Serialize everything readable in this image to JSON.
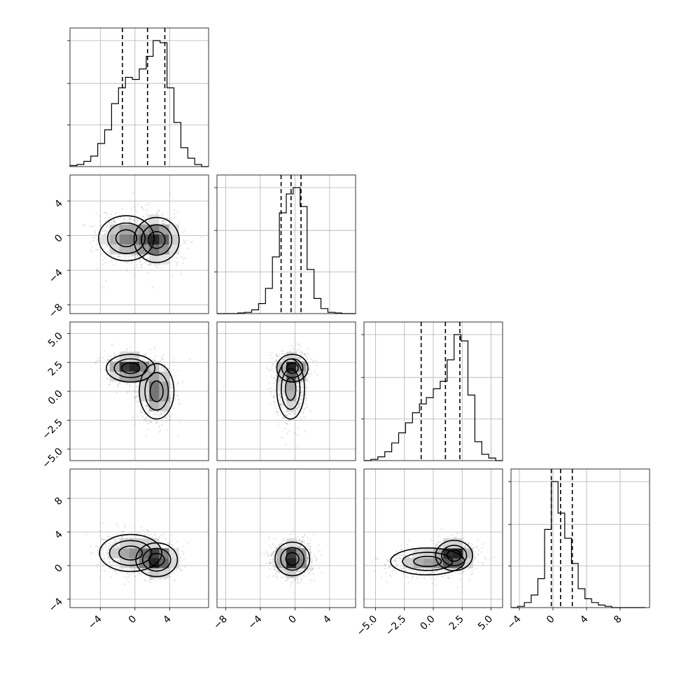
{
  "chart_data": {
    "type": "corner",
    "grid": true,
    "marginal_histograms": [
      {
        "name": "param_0",
        "xlim": [
          -7.5,
          8.5
        ],
        "bin_edges": [
          -7.5,
          -6.7,
          -5.9,
          -5.1,
          -4.3,
          -3.5,
          -2.7,
          -1.9,
          -1.1,
          -0.3,
          0.5,
          1.3,
          2.1,
          2.9,
          3.7,
          4.5,
          5.3,
          6.1,
          6.9,
          7.7,
          8.5
        ],
        "counts": [
          0.01,
          0.02,
          0.05,
          0.1,
          0.22,
          0.35,
          0.6,
          0.75,
          0.85,
          0.83,
          0.93,
          1.05,
          1.2,
          1.18,
          0.75,
          0.42,
          0.18,
          0.08,
          0.02,
          0.0
        ],
        "quantiles": [
          -1.45,
          1.45,
          3.45
        ]
      },
      {
        "name": "param_1",
        "xlim": [
          -9,
          7
        ],
        "bin_edges": [
          -9,
          -8.2,
          -7.4,
          -6.6,
          -5.8,
          -5.0,
          -4.2,
          -3.4,
          -2.6,
          -1.8,
          -1.0,
          -0.2,
          0.6,
          1.4,
          2.2,
          3.0,
          3.8,
          4.6,
          5.4,
          6.2,
          7.0
        ],
        "counts": [
          0.0,
          0.0,
          0.0,
          0.005,
          0.01,
          0.03,
          0.08,
          0.2,
          0.45,
          0.8,
          0.95,
          1.0,
          0.85,
          0.35,
          0.12,
          0.04,
          0.01,
          0.005,
          0.0,
          0.0
        ],
        "quantiles": [
          -1.6,
          -0.45,
          0.7
        ]
      },
      {
        "name": "param_2",
        "xlim": [
          -6,
          6
        ],
        "bin_edges": [
          -6.0,
          -5.4,
          -4.8,
          -4.2,
          -3.6,
          -3.0,
          -2.4,
          -1.8,
          -1.2,
          -0.6,
          0.0,
          0.6,
          1.2,
          1.8,
          2.4,
          3.0,
          3.6,
          4.2,
          4.8,
          5.4,
          6.0
        ],
        "counts": [
          0.0,
          0.01,
          0.03,
          0.07,
          0.14,
          0.22,
          0.3,
          0.38,
          0.45,
          0.5,
          0.57,
          0.63,
          0.8,
          1.0,
          0.95,
          0.52,
          0.15,
          0.05,
          0.02,
          0.0
        ],
        "quantiles": [
          -1.05,
          1.05,
          2.3
        ]
      },
      {
        "name": "param_3",
        "xlim": [
          -5,
          11.5
        ],
        "bin_edges": [
          -5.0,
          -4.2,
          -3.4,
          -2.6,
          -1.8,
          -1.0,
          -0.2,
          0.6,
          1.4,
          2.2,
          3.0,
          3.8,
          4.6,
          5.4,
          6.2,
          7.0,
          7.8,
          8.6,
          9.4,
          10.2,
          11.0
        ],
        "counts": [
          0.0,
          0.01,
          0.04,
          0.1,
          0.23,
          0.62,
          1.0,
          0.75,
          0.55,
          0.35,
          0.15,
          0.07,
          0.04,
          0.02,
          0.01,
          0.0,
          0.0,
          0.0,
          0.0,
          0.0
        ],
        "quantiles": [
          -0.2,
          0.9,
          2.3
        ]
      }
    ],
    "axis_ticks": [
      {
        "name": "param_0",
        "lim": [
          -7.5,
          8.5
        ],
        "ticks": [
          -4,
          0,
          4
        ],
        "labels": [
          "−4",
          "0",
          "4"
        ]
      },
      {
        "name": "param_1",
        "lim": [
          -9,
          7
        ],
        "ticks": [
          -8,
          -4,
          0,
          4
        ],
        "labels": [
          "−8",
          "−4",
          "0",
          "4"
        ]
      },
      {
        "name": "param_2",
        "lim": [
          -6,
          6
        ],
        "ticks": [
          -5.0,
          -2.5,
          0.0,
          2.5,
          5.0
        ],
        "labels": [
          "−5.0",
          "−2.5",
          "0.0",
          "2.5",
          "5.0"
        ]
      },
      {
        "name": "param_3",
        "lim": [
          -5,
          11.5
        ],
        "ticks": [
          -4,
          0,
          4,
          8
        ],
        "labels": [
          "−4",
          "0",
          "4",
          "8"
        ]
      }
    ],
    "joint_distributions": [
      {
        "x": "param_0",
        "y": "param_1",
        "modes": [
          {
            "mx": 2.5,
            "my": -0.5,
            "sx": 1.3,
            "sy": 1.3,
            "w": 0.55
          },
          {
            "mx": -1.0,
            "my": -0.3,
            "sx": 1.6,
            "sy": 1.3,
            "w": 0.45
          }
        ]
      },
      {
        "x": "param_0",
        "y": "param_2",
        "modes": [
          {
            "mx": -0.5,
            "my": 2.0,
            "sx": 1.4,
            "sy": 0.6,
            "w": 0.5
          },
          {
            "mx": 2.5,
            "my": 0.0,
            "sx": 1.0,
            "sy": 1.2,
            "w": 0.5
          }
        ]
      },
      {
        "x": "param_1",
        "y": "param_2",
        "modes": [
          {
            "mx": -0.3,
            "my": 2.0,
            "sx": 0.9,
            "sy": 0.6,
            "w": 0.5
          },
          {
            "mx": -0.5,
            "my": 0.2,
            "sx": 0.8,
            "sy": 1.3,
            "w": 0.5
          }
        ]
      },
      {
        "x": "param_0",
        "y": "param_3",
        "modes": [
          {
            "mx": 2.5,
            "my": 0.7,
            "sx": 1.2,
            "sy": 1.0,
            "w": 0.55
          },
          {
            "mx": -0.5,
            "my": 1.5,
            "sx": 1.8,
            "sy": 1.1,
            "w": 0.45
          }
        ]
      },
      {
        "x": "param_1",
        "y": "param_3",
        "modes": [
          {
            "mx": -0.3,
            "my": 0.8,
            "sx": 1.0,
            "sy": 1.0,
            "w": 1.0
          }
        ]
      },
      {
        "x": "param_2",
        "y": "param_3",
        "modes": [
          {
            "mx": 1.8,
            "my": 1.2,
            "sx": 0.8,
            "sy": 0.9,
            "w": 0.55
          },
          {
            "mx": -0.5,
            "my": 0.5,
            "sx": 1.6,
            "sy": 0.8,
            "w": 0.45
          }
        ]
      }
    ]
  }
}
